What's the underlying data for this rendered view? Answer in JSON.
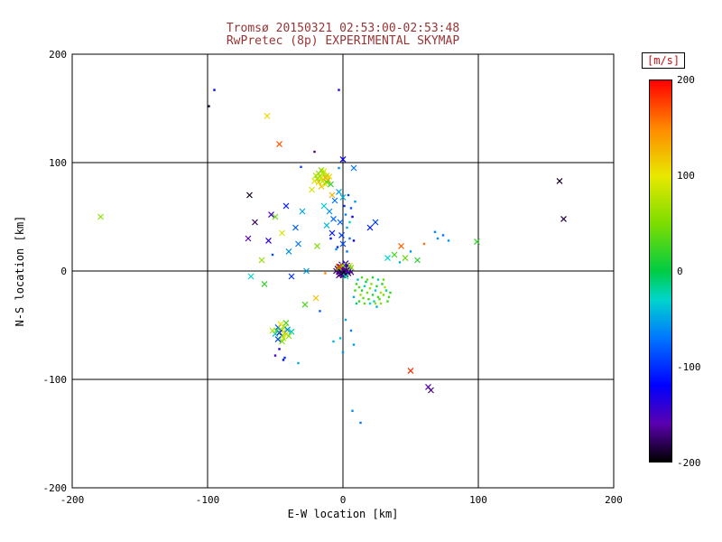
{
  "colors": {
    "background": "#ffffff",
    "frame": "#000000",
    "grid": "#000000",
    "title_text": "#9a3434",
    "axis_text": "#000000",
    "colorbar_label_text": "#cc1111"
  },
  "chart_data": {
    "type": "scatter",
    "title": "Tromsø 20150321 02:53:00-02:53:48",
    "subtitle": "RwPretec (8p) EXPERIMENTAL SKYMAP",
    "xlabel": "E-W location [km]",
    "ylabel": "N-S location [km]",
    "xlim": [
      -200,
      200
    ],
    "ylim": [
      -200,
      200
    ],
    "xticks": [
      -200,
      -100,
      0,
      100,
      200
    ],
    "yticks": [
      -200,
      -100,
      0,
      100,
      200
    ],
    "grid": true,
    "grid_lines_x": [
      -100,
      0,
      100
    ],
    "grid_lines_y": [
      -100,
      0,
      100
    ],
    "legend_position": "none",
    "colorbar": {
      "label": "[m/s]",
      "ticks": [
        200,
        100,
        0,
        -100,
        -200
      ],
      "min": -200,
      "max": 200,
      "stops": [
        [
          -200,
          "#000000"
        ],
        [
          -160,
          "#5a00b0"
        ],
        [
          -120,
          "#0000ff"
        ],
        [
          -70,
          "#0077ff"
        ],
        [
          -30,
          "#00d5cc"
        ],
        [
          0,
          "#00cc44"
        ],
        [
          50,
          "#7ddd00"
        ],
        [
          100,
          "#e8e800"
        ],
        [
          150,
          "#ff8800"
        ],
        [
          200,
          "#ff0000"
        ]
      ]
    },
    "marker_legend": {
      "0": "x-cross",
      "1": "dot"
    },
    "points": [
      [
        -2,
        1,
        -190,
        0
      ],
      [
        0,
        0,
        -200,
        0
      ],
      [
        1,
        -1,
        -185,
        0
      ],
      [
        2,
        2,
        -175,
        0
      ],
      [
        -1,
        -2,
        -195,
        0
      ],
      [
        3,
        0,
        -180,
        0
      ],
      [
        -3,
        -1,
        -170,
        0
      ],
      [
        0,
        3,
        -160,
        0
      ],
      [
        1,
        4,
        -150,
        0
      ],
      [
        -2,
        4,
        -165,
        0
      ],
      [
        2,
        -3,
        -190,
        0
      ],
      [
        4,
        -2,
        -175,
        0
      ],
      [
        -4,
        2,
        -185,
        0
      ],
      [
        0,
        -4,
        -155,
        0
      ],
      [
        5,
        1,
        -145,
        0
      ],
      [
        -1,
        6,
        -150,
        0
      ],
      [
        3,
        5,
        -140,
        0
      ],
      [
        -3,
        -4,
        -160,
        0
      ],
      [
        6,
        -1,
        -170,
        0
      ],
      [
        -5,
        0,
        -180,
        0
      ],
      [
        2,
        7,
        -145,
        0
      ],
      [
        0,
        -2,
        -198,
        0
      ],
      [
        -2,
        -3,
        -175,
        0
      ],
      [
        4,
        3,
        -150,
        0
      ],
      [
        1,
        2,
        -165,
        0
      ],
      [
        0,
        5,
        60,
        0
      ],
      [
        -3,
        3,
        40,
        0
      ],
      [
        5,
        5,
        80,
        0
      ],
      [
        2,
        -5,
        -20,
        0
      ],
      [
        6,
        3,
        50,
        0
      ],
      [
        -3,
        4,
        185,
        0
      ],
      [
        -13,
        -2,
        150,
        1
      ],
      [
        10,
        -12,
        20,
        1
      ],
      [
        12,
        -15,
        35,
        1
      ],
      [
        14,
        -18,
        10,
        1
      ],
      [
        16,
        -14,
        -20,
        1
      ],
      [
        18,
        -20,
        45,
        1
      ],
      [
        20,
        -16,
        60,
        1
      ],
      [
        22,
        -22,
        15,
        1
      ],
      [
        24,
        -18,
        -35,
        1
      ],
      [
        26,
        -24,
        25,
        1
      ],
      [
        28,
        -20,
        70,
        1
      ],
      [
        15,
        -25,
        40,
        1
      ],
      [
        17,
        -10,
        -10,
        1
      ],
      [
        19,
        -26,
        30,
        1
      ],
      [
        21,
        -12,
        55,
        1
      ],
      [
        23,
        -28,
        -25,
        1
      ],
      [
        25,
        -14,
        20,
        1
      ],
      [
        13,
        -22,
        65,
        1
      ],
      [
        11,
        -8,
        -40,
        1
      ],
      [
        27,
        -26,
        35,
        1
      ],
      [
        29,
        -12,
        10,
        1
      ],
      [
        30,
        -22,
        50,
        1
      ],
      [
        32,
        -18,
        -15,
        1
      ],
      [
        9,
        -18,
        25,
        1
      ],
      [
        16,
        -30,
        40,
        1
      ],
      [
        20,
        -30,
        -30,
        1
      ],
      [
        24,
        -30,
        60,
        1
      ],
      [
        12,
        -28,
        20,
        1
      ],
      [
        34,
        -24,
        30,
        1
      ],
      [
        8,
        -24,
        -50,
        1
      ],
      [
        18,
        -8,
        45,
        1
      ],
      [
        22,
        -6,
        15,
        1
      ],
      [
        26,
        -8,
        -20,
        1
      ],
      [
        31,
        -15,
        75,
        1
      ],
      [
        33,
        -28,
        25,
        1
      ],
      [
        14,
        -6,
        35,
        1
      ],
      [
        10,
        -30,
        -10,
        1
      ],
      [
        28,
        -30,
        55,
        1
      ],
      [
        35,
        -20,
        20,
        1
      ],
      [
        30,
        -8,
        40,
        1
      ],
      [
        25,
        -33,
        -45,
        1
      ],
      [
        33,
        12,
        -30,
        0
      ],
      [
        38,
        15,
        25,
        0
      ],
      [
        42,
        8,
        -45,
        1
      ],
      [
        46,
        12,
        40,
        0
      ],
      [
        50,
        18,
        -60,
        1
      ],
      [
        55,
        10,
        15,
        0
      ],
      [
        43,
        23,
        165,
        0
      ],
      [
        20,
        40,
        -110,
        0
      ],
      [
        24,
        45,
        -95,
        0
      ],
      [
        -16,
        86,
        90,
        0
      ],
      [
        -14,
        84,
        110,
        0
      ],
      [
        -12,
        88,
        70,
        0
      ],
      [
        -18,
        82,
        120,
        0
      ],
      [
        -15,
        90,
        60,
        0
      ],
      [
        -13,
        80,
        100,
        0
      ],
      [
        -17,
        87,
        80,
        0
      ],
      [
        -11,
        84,
        130,
        0
      ],
      [
        -19,
        85,
        50,
        0
      ],
      [
        -14,
        92,
        95,
        0
      ],
      [
        -16,
        78,
        115,
        0
      ],
      [
        -12,
        82,
        40,
        0
      ],
      [
        -20,
        88,
        75,
        0
      ],
      [
        -10,
        87,
        105,
        0
      ],
      [
        -15,
        83,
        85,
        0
      ],
      [
        -18,
        90,
        65,
        0
      ],
      [
        -13,
        86,
        125,
        0
      ],
      [
        -9,
        80,
        20,
        0
      ],
      [
        -21,
        83,
        95,
        0
      ],
      [
        -16,
        93,
        55,
        0
      ],
      [
        -8,
        70,
        130,
        0
      ],
      [
        -23,
        75,
        90,
        0
      ],
      [
        -5,
        20,
        -60,
        1
      ],
      [
        0,
        25,
        -90,
        0
      ],
      [
        5,
        30,
        -70,
        1
      ],
      [
        -8,
        35,
        -110,
        0
      ],
      [
        3,
        40,
        -50,
        1
      ],
      [
        -2,
        45,
        -80,
        0
      ],
      [
        7,
        50,
        -120,
        1
      ],
      [
        -10,
        55,
        -60,
        0
      ],
      [
        1,
        60,
        -100,
        1
      ],
      [
        -6,
        65,
        -70,
        0
      ],
      [
        4,
        70,
        -90,
        1
      ],
      [
        -3,
        73,
        -50,
        0
      ],
      [
        8,
        28,
        -130,
        1
      ],
      [
        -12,
        42,
        -40,
        0
      ],
      [
        6,
        58,
        -85,
        1
      ],
      [
        -1,
        33,
        -95,
        0
      ],
      [
        2,
        52,
        -65,
        1
      ],
      [
        -7,
        48,
        -75,
        0
      ],
      [
        9,
        64,
        -55,
        1
      ],
      [
        -4,
        22,
        -105,
        1
      ],
      [
        0,
        68,
        -45,
        0
      ],
      [
        -9,
        30,
        -115,
        1
      ],
      [
        5,
        45,
        -25,
        1
      ],
      [
        -14,
        60,
        -35,
        0
      ],
      [
        3,
        18,
        -70,
        1
      ],
      [
        0,
        103,
        -120,
        0
      ],
      [
        8,
        95,
        -70,
        0
      ],
      [
        -3,
        95,
        -60,
        1
      ],
      [
        -46,
        -54,
        60,
        0
      ],
      [
        -44,
        -56,
        90,
        0
      ],
      [
        -48,
        -52,
        -80,
        0
      ],
      [
        -42,
        -58,
        110,
        0
      ],
      [
        -45,
        -60,
        40,
        0
      ],
      [
        -47,
        -57,
        -120,
        0
      ],
      [
        -43,
        -52,
        70,
        0
      ],
      [
        -49,
        -55,
        20,
        0
      ],
      [
        -41,
        -54,
        -60,
        0
      ],
      [
        -44,
        -62,
        85,
        0
      ],
      [
        -46,
        -49,
        100,
        0
      ],
      [
        -50,
        -58,
        -40,
        0
      ],
      [
        -40,
        -60,
        55,
        0
      ],
      [
        -48,
        -63,
        -90,
        0
      ],
      [
        -42,
        -48,
        30,
        0
      ],
      [
        -52,
        -55,
        75,
        0
      ],
      [
        -38,
        -56,
        -20,
        0
      ],
      [
        -45,
        -65,
        50,
        0
      ],
      [
        -47,
        -72,
        -130,
        1
      ],
      [
        -50,
        -78,
        -150,
        1
      ],
      [
        -43,
        -80,
        -100,
        1
      ],
      [
        -33,
        -85,
        -50,
        1
      ],
      [
        -44,
        -82,
        -120,
        1
      ],
      [
        -65,
        45,
        -180,
        0
      ],
      [
        -55,
        28,
        -140,
        0
      ],
      [
        -40,
        18,
        -60,
        0
      ],
      [
        -35,
        40,
        -80,
        0
      ],
      [
        -60,
        10,
        60,
        0
      ],
      [
        -30,
        55,
        -50,
        0
      ],
      [
        -70,
        30,
        -160,
        0
      ],
      [
        -50,
        50,
        40,
        0
      ],
      [
        -38,
        -5,
        -100,
        0
      ],
      [
        -58,
        -12,
        20,
        0
      ],
      [
        -33,
        25,
        -70,
        0
      ],
      [
        -45,
        35,
        90,
        0
      ],
      [
        -68,
        -5,
        -30,
        0
      ],
      [
        -52,
        15,
        -90,
        1
      ],
      [
        -42,
        60,
        -110,
        0
      ],
      [
        -27,
        0,
        -55,
        0
      ],
      [
        -19,
        23,
        50,
        0
      ],
      [
        -20,
        -25,
        120,
        0
      ],
      [
        -17,
        -37,
        -80,
        1
      ],
      [
        -28,
        -31,
        30,
        0
      ],
      [
        -179,
        50,
        60,
        0
      ],
      [
        160,
        83,
        -190,
        0
      ],
      [
        163,
        48,
        -185,
        0
      ],
      [
        50,
        -92,
        185,
        0
      ],
      [
        60,
        25,
        160,
        1
      ],
      [
        70,
        30,
        -60,
        1
      ],
      [
        74,
        33,
        -70,
        1
      ],
      [
        78,
        28,
        -55,
        1
      ],
      [
        68,
        36,
        -65,
        1
      ],
      [
        99,
        27,
        20,
        0
      ],
      [
        63,
        -107,
        -160,
        0
      ],
      [
        65,
        -110,
        -170,
        0
      ],
      [
        7,
        -129,
        -60,
        1
      ],
      [
        13,
        -140,
        -70,
        1
      ],
      [
        -47,
        117,
        170,
        0
      ],
      [
        -56,
        143,
        110,
        0
      ],
      [
        -95,
        167,
        -120,
        1
      ],
      [
        -99,
        152,
        -190,
        1
      ],
      [
        -69,
        70,
        -190,
        0
      ],
      [
        -53,
        52,
        -150,
        0
      ],
      [
        -21,
        110,
        -170,
        1
      ],
      [
        -31,
        96,
        -90,
        1
      ],
      [
        -3,
        167,
        -130,
        1
      ],
      [
        2,
        -45,
        -50,
        1
      ],
      [
        6,
        -55,
        -65,
        1
      ],
      [
        -2,
        -62,
        -40,
        1
      ],
      [
        8,
        -68,
        -55,
        1
      ],
      [
        0,
        -75,
        -60,
        1
      ],
      [
        -7,
        -65,
        -45,
        1
      ]
    ]
  }
}
